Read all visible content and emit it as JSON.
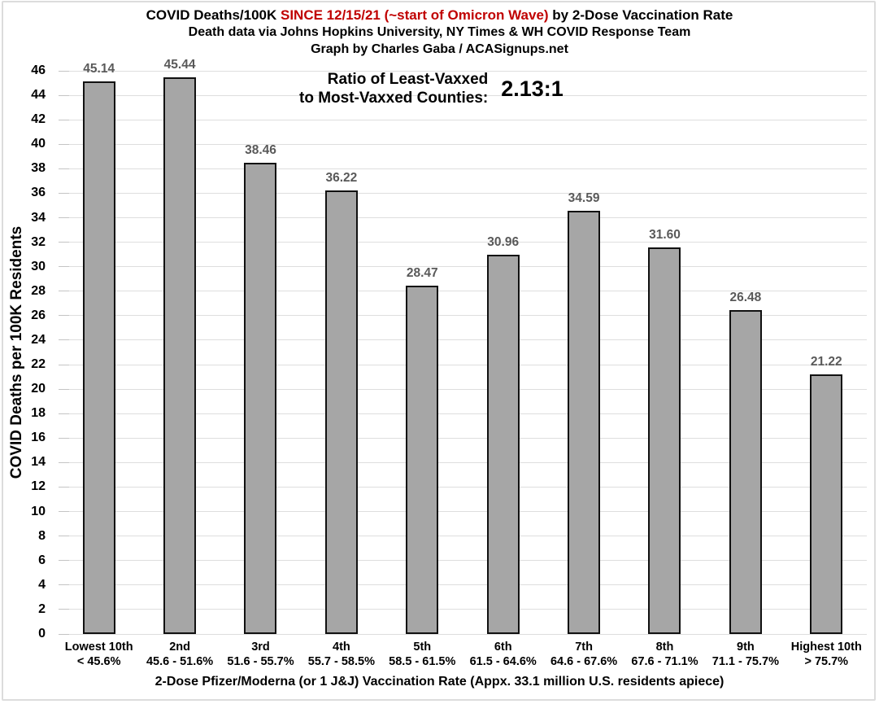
{
  "title": {
    "line1_before": "COVID Deaths/100K ",
    "line1_highlight": "SINCE 12/15/21 (~start of Omicron Wave)",
    "line1_after": " by 2-Dose Vaccination Rate",
    "line2": "Death data via Johns Hopkins University, NY Times & WH COVID Response Team",
    "line3": "Graph by Charles Gaba / ACASignups.net"
  },
  "annotation": {
    "label_line1": "Ratio of Least-Vaxxed",
    "label_line2": "to Most-Vaxxed Counties:",
    "value": "2.13:1"
  },
  "chart_data": {
    "type": "bar",
    "title": "COVID Deaths/100K SINCE 12/15/21 (~start of Omicron Wave) by 2-Dose Vaccination Rate",
    "subtitle1": "Death data via Johns Hopkins University, NY Times & WH COVID Response Team",
    "subtitle2": "Graph by Charles Gaba / ACASignups.net",
    "categories": [
      {
        "tier": "Lowest 10th",
        "range": "< 45.6%"
      },
      {
        "tier": "2nd",
        "range": "45.6 - 51.6%"
      },
      {
        "tier": "3rd",
        "range": "51.6 - 55.7%"
      },
      {
        "tier": "4th",
        "range": "55.7 - 58.5%"
      },
      {
        "tier": "5th",
        "range": "58.5 - 61.5%"
      },
      {
        "tier": "6th",
        "range": "61.5 - 64.6%"
      },
      {
        "tier": "7th",
        "range": "64.6 - 67.6%"
      },
      {
        "tier": "8th",
        "range": "67.6 - 71.1%"
      },
      {
        "tier": "9th",
        "range": "71.1 - 75.7%"
      },
      {
        "tier": "Highest 10th",
        "range": "> 75.7%"
      }
    ],
    "values": [
      45.14,
      45.44,
      38.46,
      36.22,
      28.47,
      30.96,
      34.59,
      31.6,
      26.48,
      21.22
    ],
    "value_labels": [
      "45.14",
      "45.44",
      "38.46",
      "36.22",
      "28.47",
      "30.96",
      "34.59",
      "31.60",
      "26.48",
      "21.22"
    ],
    "annotation": "Ratio of Least-Vaxxed to Most-Vaxxed Counties: 2.13:1",
    "xlabel": "2-Dose Pfizer/Moderna (or 1 J&J) Vaccination Rate (Appx. 33.1 million U.S. residents apiece)",
    "ylabel": "COVID Deaths per 100K Residents",
    "ylim": [
      0,
      46
    ],
    "ytick_step": 2,
    "grid": true,
    "legend": "none",
    "colors": {
      "bar_fill": "#A6A6A6",
      "bar_border": "#111111",
      "value_label": "#595959",
      "title_highlight": "#C00000",
      "gridline": "#DEDEDE",
      "text": "#000000"
    }
  }
}
